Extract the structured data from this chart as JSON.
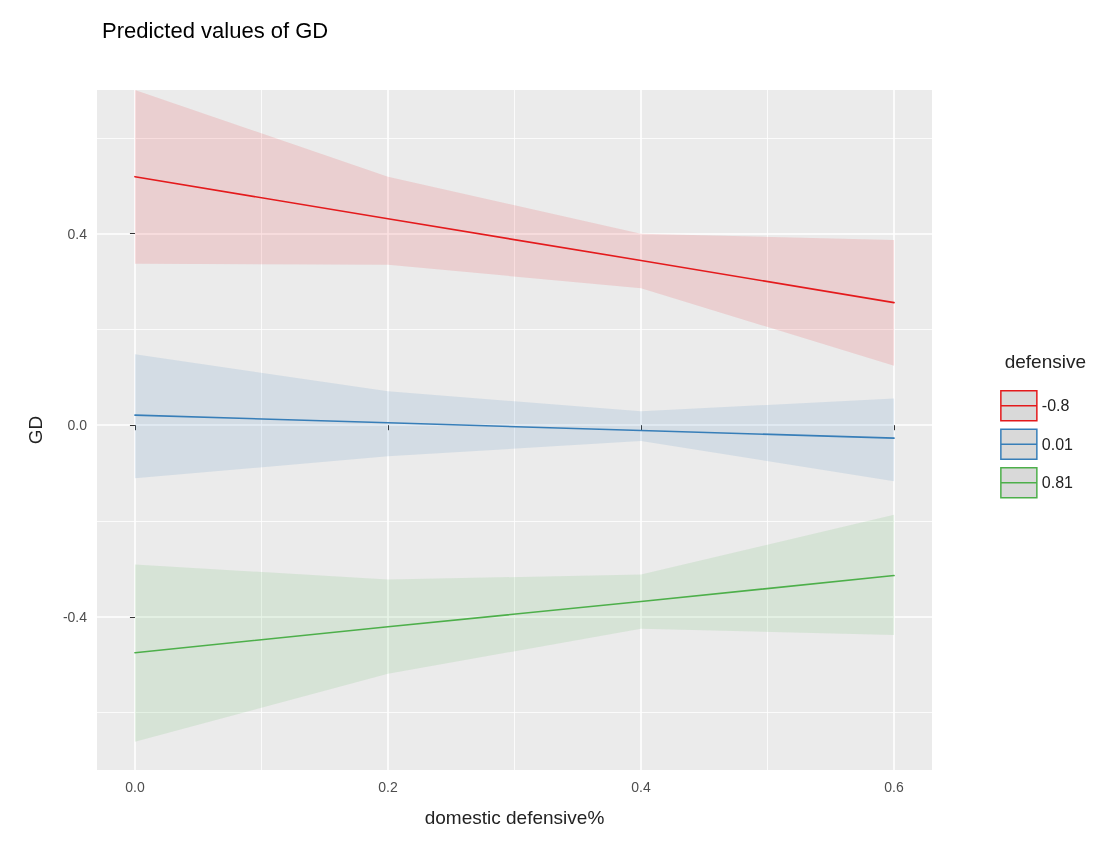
{
  "chart_data": {
    "type": "line",
    "title": "Predicted values of GD",
    "xlabel": "domestic defensive%",
    "ylabel": "GD",
    "legend_title": "defensive",
    "legend": "right",
    "grid": true,
    "marker": "none",
    "line_style": "solid",
    "x": [
      0,
      0.2,
      0.4,
      0.6
    ],
    "xlim": [
      -0.03,
      0.63
    ],
    "xticks": [
      {
        "value": 0,
        "label": "0.0"
      },
      0.2,
      0.4,
      0.6
    ],
    "ylim": [
      -0.72,
      0.7
    ],
    "yticks": [
      -0.4,
      {
        "value": 0,
        "label": "0.0"
      },
      0.4
    ],
    "series": [
      {
        "name": "-0.8",
        "color": "#e41a1c",
        "values": [
          0.519,
          0.431,
          0.344,
          0.256
        ],
        "lower": [
          0.337,
          0.335,
          0.286,
          0.124
        ],
        "upper": [
          0.7,
          0.519,
          0.4,
          0.387
        ]
      },
      {
        "name": "0.01",
        "color": "#377eb8",
        "values": [
          0.021,
          0.005,
          -0.011,
          -0.027
        ],
        "lower": [
          -0.111,
          -0.065,
          -0.033,
          -0.117
        ],
        "upper": [
          0.148,
          0.071,
          0.029,
          0.056
        ]
      },
      {
        "name": "0.81",
        "color": "#4daf4a",
        "values": [
          -0.475,
          -0.421,
          -0.368,
          -0.314
        ],
        "lower": [
          -0.661,
          -0.519,
          -0.425,
          -0.438
        ],
        "upper": [
          -0.291,
          -0.322,
          -0.312,
          -0.187
        ]
      }
    ]
  }
}
